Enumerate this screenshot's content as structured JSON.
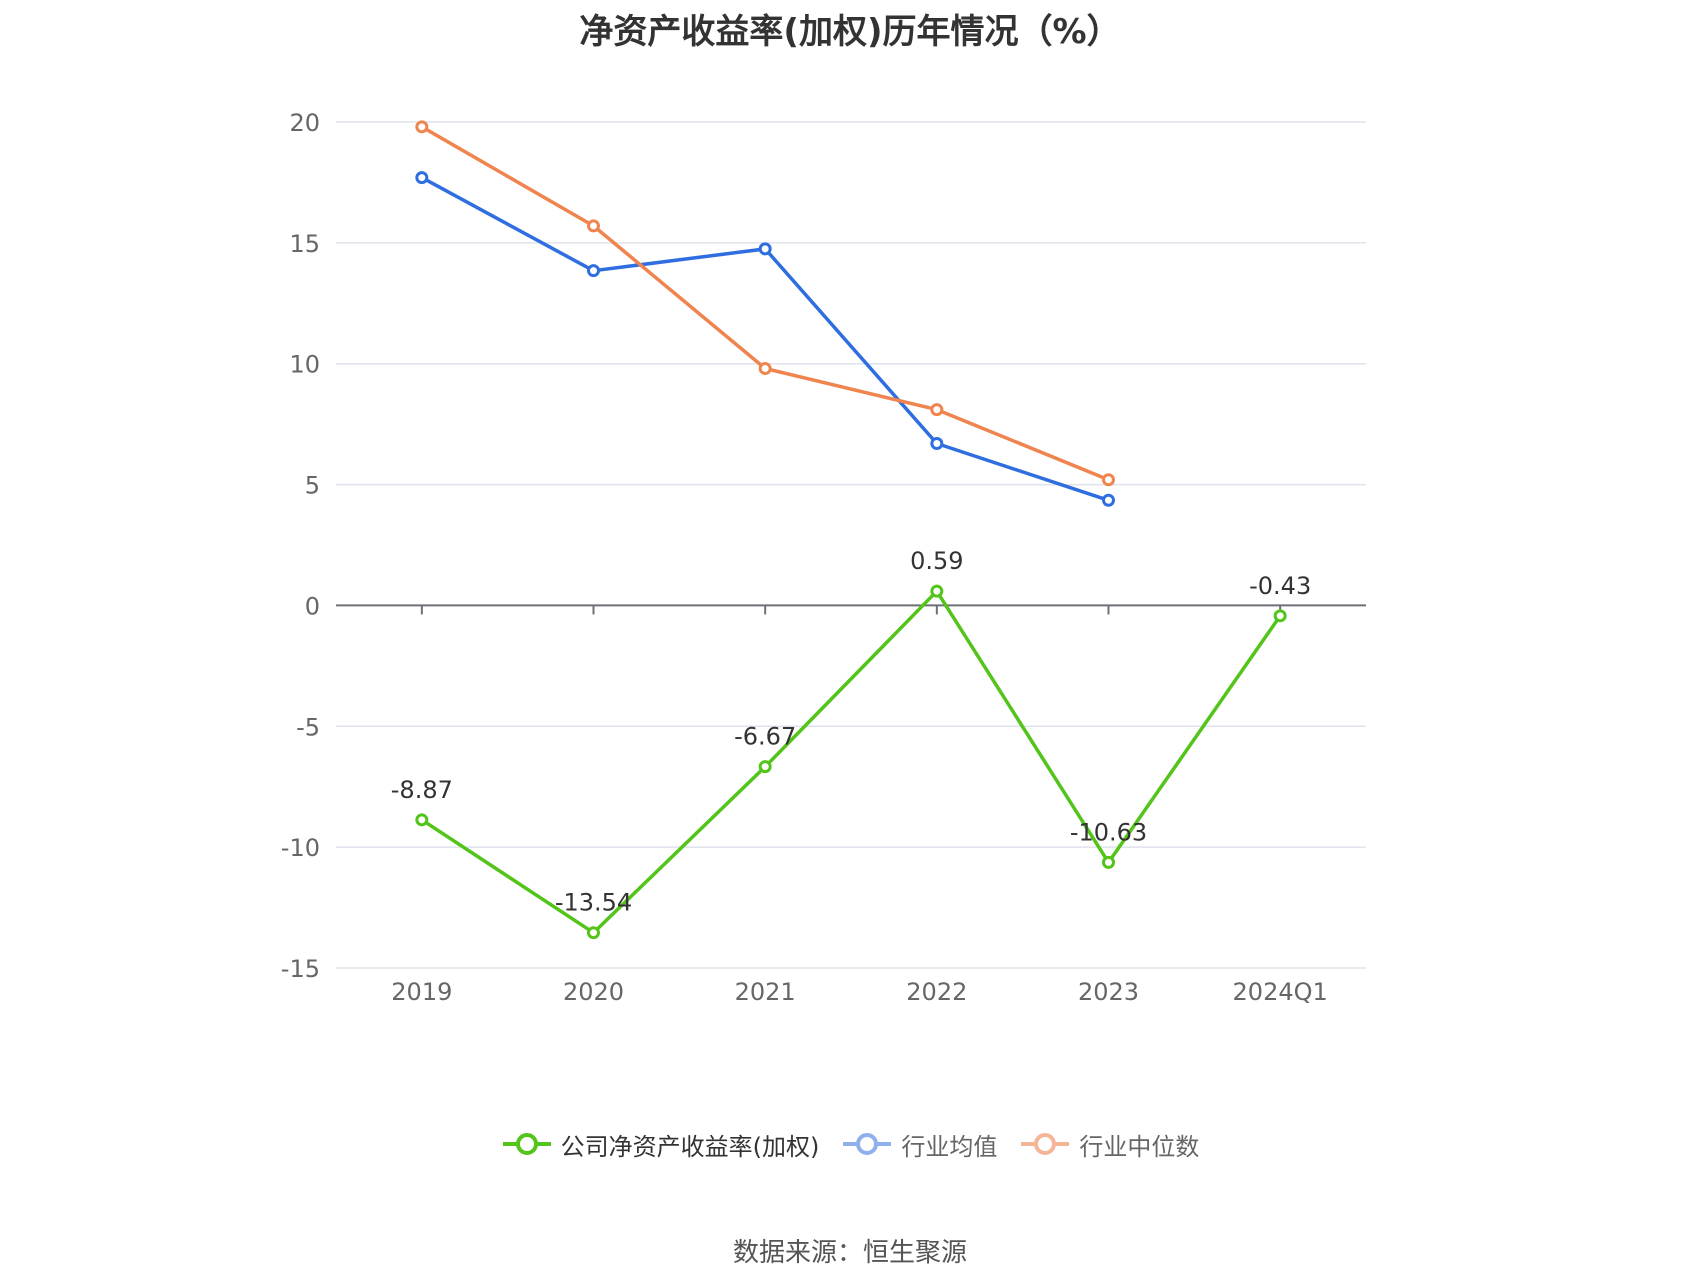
{
  "chart_data": {
    "type": "line",
    "title": "净资产收益率(加权)历年情况（%）",
    "categories": [
      "2019",
      "2020",
      "2021",
      "2022",
      "2023",
      "2024Q1"
    ],
    "ylim": [
      -15,
      20
    ],
    "yticks": [
      "20",
      "15",
      "10",
      "5",
      "0",
      "-5",
      "-10",
      "-15"
    ],
    "grid": true,
    "legend_position": "bottom",
    "series": [
      {
        "name": "公司净资产收益率(加权)",
        "color": "#52c41a",
        "values": [
          -8.87,
          -13.54,
          -6.67,
          0.59,
          -10.63,
          -0.43
        ],
        "labels": [
          "-8.87",
          "-13.54",
          "-6.67",
          "0.59",
          "-10.63",
          "-0.43"
        ]
      },
      {
        "name": "行业均值",
        "color": "#2f6ee0",
        "values": [
          17.7,
          13.85,
          14.75,
          6.7,
          4.35,
          null
        ]
      },
      {
        "name": "行业中位数",
        "color": "#f0844f",
        "values": [
          19.8,
          15.7,
          9.8,
          8.1,
          5.2,
          null
        ]
      }
    ]
  },
  "legend": {
    "items": [
      {
        "label": "公司净资产收益率(加权)",
        "color": "#52c41a"
      },
      {
        "label": "行业均值",
        "color": "#8fb0ec"
      },
      {
        "label": "行业中位数",
        "color": "#f5b597"
      }
    ]
  },
  "footer": {
    "source": "数据来源：恒生聚源"
  }
}
